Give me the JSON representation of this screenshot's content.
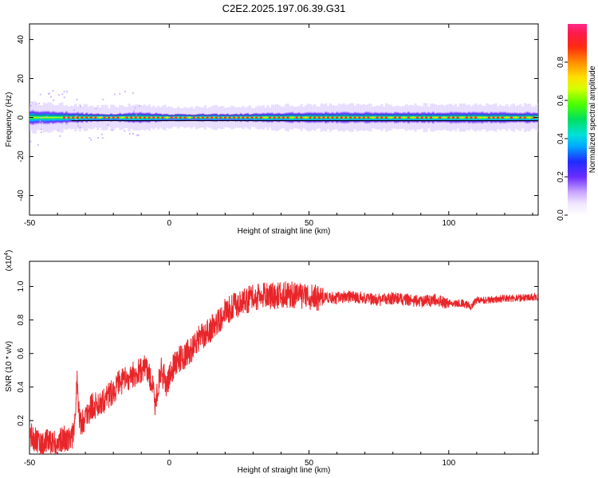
{
  "title": "C2E2.2025.197.06.39.G31",
  "chart_data": [
    {
      "type": "heatmap",
      "title": "C2E2.2025.197.06.39.G31",
      "xlabel": "Height of straight line (km)",
      "ylabel": "Frequency (Hz)",
      "xlim": [
        -50,
        132
      ],
      "ylim": [
        -50,
        48
      ],
      "x_ticks": [
        -50,
        0,
        50,
        100
      ],
      "y_ticks": [
        40,
        20,
        0,
        -20,
        -40
      ],
      "band_center_hz": 0,
      "band_halfwidth_hz": [
        [
          -50,
          4
        ],
        [
          -35,
          3
        ],
        [
          -25,
          2
        ],
        [
          -10,
          3
        ],
        [
          0,
          2
        ],
        [
          20,
          2
        ],
        [
          50,
          3
        ],
        [
          80,
          3
        ],
        [
          132,
          3
        ]
      ],
      "colorbar": {
        "label": "Normalized spectral amplitude",
        "range": [
          0.0,
          1.0
        ],
        "ticks": [
          "0.0",
          "0.2",
          "0.4",
          "0.6",
          "0.8"
        ]
      },
      "grid": false
    },
    {
      "type": "line",
      "xlabel": "Height of straight line (km)",
      "ylabel": "SNR (10 * v/v)",
      "y_multiplier": "(x10^4)",
      "xlim": [
        -50,
        132
      ],
      "ylim": [
        0.0,
        1.15
      ],
      "x_ticks": [
        -50,
        0,
        50,
        100
      ],
      "y_ticks": [
        "0.2",
        "0.4",
        "0.6",
        "0.8",
        "1.0"
      ],
      "series": [
        {
          "color": "#e8262a",
          "x": [
            -50,
            -47,
            -45,
            -43,
            -40,
            -38,
            -36,
            -34,
            -33,
            -32,
            -30,
            -28,
            -25,
            -22,
            -20,
            -18,
            -15,
            -12,
            -10,
            -8,
            -6,
            -5,
            -3,
            -1,
            0,
            2,
            5,
            8,
            10,
            13,
            15,
            18,
            20,
            23,
            25,
            28,
            30,
            33,
            35,
            38,
            40,
            45,
            50,
            55,
            60,
            65,
            70,
            75,
            80,
            85,
            90,
            95,
            100,
            105,
            108,
            110,
            115,
            120,
            125,
            132
          ],
          "y": [
            0.12,
            0.08,
            0.05,
            0.08,
            0.06,
            0.09,
            0.1,
            0.12,
            0.45,
            0.18,
            0.22,
            0.28,
            0.3,
            0.35,
            0.38,
            0.42,
            0.45,
            0.48,
            0.5,
            0.52,
            0.4,
            0.3,
            0.5,
            0.42,
            0.45,
            0.55,
            0.58,
            0.62,
            0.68,
            0.72,
            0.75,
            0.8,
            0.85,
            0.88,
            0.9,
            0.92,
            0.93,
            0.94,
            0.95,
            0.94,
            0.95,
            0.95,
            0.94,
            0.93,
            0.93,
            0.94,
            0.93,
            0.92,
            0.93,
            0.92,
            0.91,
            0.92,
            0.9,
            0.9,
            0.88,
            0.92,
            0.92,
            0.93,
            0.93,
            0.94
          ],
          "noise_amplitude": 0.08
        }
      ],
      "grid": false
    }
  ]
}
